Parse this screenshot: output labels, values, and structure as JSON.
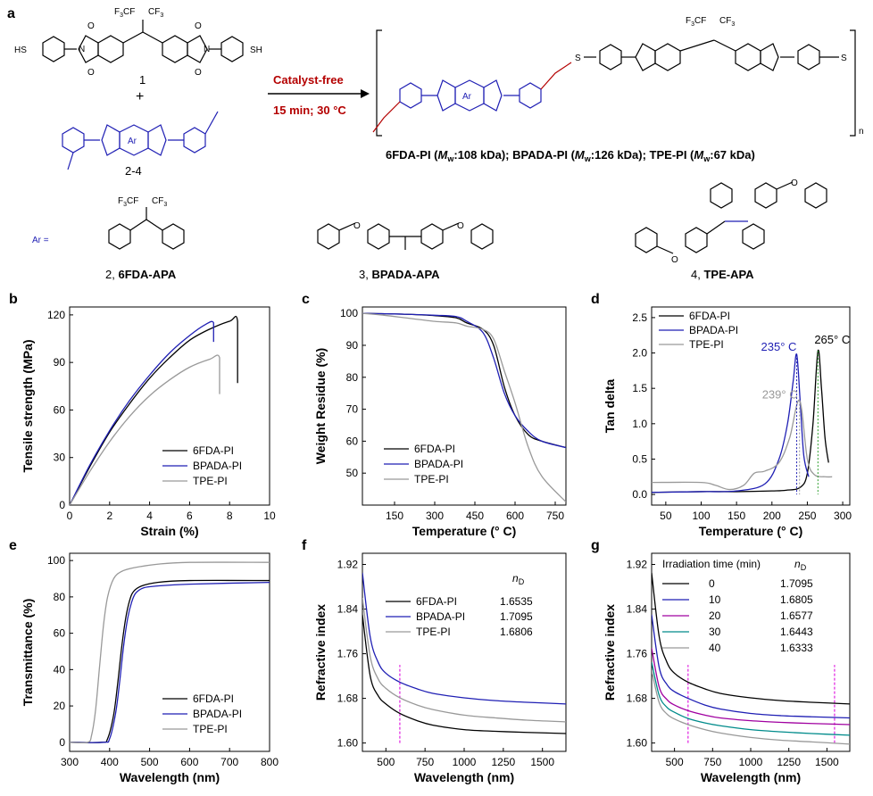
{
  "scheme": {
    "panel_letter": "a",
    "catalyst_label": "Catalyst-free",
    "condition_label": "15 min; 30 °C",
    "monomer1_label": "1",
    "plus_sign": "+",
    "monomer2_label": "2-4",
    "ring_label": "Ar",
    "ar_equals": "Ar =",
    "repeat_n": "n",
    "sh": "SH",
    "hs": "HS",
    "s": "S",
    "cf3_a": "F",
    "cf3_text": "CF",
    "sub3": "3",
    "oxygen": "O",
    "nitrogen": "N",
    "mw_pre1": "6FDA-PI (",
    "mw_m": "M",
    "mw_w": "w",
    "mw_v1": ":108 kDa); BPADA-PI (",
    "mw_v2": ":126 kDa); TPE-PI (",
    "mw_v3": ":67 kDa)",
    "ar1_num": "2, ",
    "ar1_name": "6FDA-APA",
    "ar2_num": "3, ",
    "ar2_name": "BPADA-APA",
    "ar3_num": "4, ",
    "ar3_name": "TPE-APA",
    "colors": {
      "blue": "#1f1fb4",
      "red": "#b40000",
      "black": "#000000"
    }
  },
  "chart_data": [
    {
      "panel": "b",
      "type": "line",
      "xlabel": "Strain (%)",
      "ylabel": "Tensile strength (MPa)",
      "xlim": [
        0,
        10
      ],
      "ylim": [
        0,
        125
      ],
      "xticks": [
        0,
        2,
        4,
        6,
        8,
        10
      ],
      "yticks": [
        0,
        30,
        60,
        90,
        120
      ],
      "legend_position": "bottom-right",
      "series": [
        {
          "name": "6FDA-PI",
          "color": "#000000",
          "x": [
            0,
            1,
            2,
            3,
            4,
            5,
            6,
            7,
            8,
            8.4,
            8.4
          ],
          "y": [
            0,
            24,
            46,
            64,
            80,
            93,
            104,
            111,
            116,
            116,
            77
          ]
        },
        {
          "name": "BPADA-PI",
          "color": "#1f1fb4",
          "x": [
            0,
            1,
            2,
            3,
            4,
            5,
            6,
            6.8,
            7.2,
            7.2
          ],
          "y": [
            0,
            25,
            47,
            66,
            82,
            96,
            107,
            114,
            115,
            103
          ]
        },
        {
          "name": "TPE-PI",
          "color": "#999999",
          "x": [
            0,
            1,
            2,
            3,
            4,
            5,
            6,
            7,
            7.5,
            7.5
          ],
          "y": [
            0,
            21,
            40,
            56,
            69,
            79,
            87,
            92,
            93,
            70
          ]
        }
      ]
    },
    {
      "panel": "c",
      "type": "line",
      "xlabel": "Temperature (° C)",
      "ylabel": "Weight Residue (%)",
      "xlim": [
        30,
        790
      ],
      "ylim": [
        40,
        102
      ],
      "xticks": [
        150,
        300,
        450,
        600,
        750
      ],
      "yticks": [
        50,
        60,
        70,
        80,
        90,
        100
      ],
      "legend_position": "bottom-center",
      "series": [
        {
          "name": "6FDA-PI",
          "color": "#000000",
          "x": [
            30,
            100,
            200,
            300,
            380,
            420,
            480,
            520,
            560,
            600,
            650,
            700,
            790
          ],
          "y": [
            100,
            99.9,
            99.7,
            99.3,
            98.6,
            97,
            95,
            90,
            77,
            68,
            62,
            60,
            58
          ]
        },
        {
          "name": "BPADA-PI",
          "color": "#1f1fb4",
          "x": [
            30,
            100,
            200,
            300,
            380,
            420,
            480,
            520,
            560,
            600,
            650,
            700,
            790
          ],
          "y": [
            100,
            99.9,
            99.7,
            99.4,
            99,
            97.5,
            94,
            86,
            75,
            68,
            63,
            60,
            58
          ]
        },
        {
          "name": "TPE-PI",
          "color": "#999999",
          "x": [
            30,
            100,
            200,
            300,
            380,
            420,
            480,
            520,
            560,
            600,
            650,
            700,
            790
          ],
          "y": [
            100,
            99.5,
            98.5,
            97.5,
            97,
            96,
            95,
            92,
            82,
            72,
            58,
            49,
            41
          ]
        }
      ]
    },
    {
      "panel": "d",
      "type": "line",
      "xlabel": "Temperature (° C)",
      "ylabel": "Tan delta",
      "xlim": [
        30,
        310
      ],
      "ylim": [
        -0.15,
        2.65
      ],
      "xticks": [
        50,
        100,
        150,
        200,
        250,
        300
      ],
      "yticks": [
        0.0,
        0.5,
        1.0,
        1.5,
        2.0,
        2.5
      ],
      "legend_position": "top-left",
      "annotations": [
        {
          "text": "265° C",
          "color": "#000000",
          "x": 265,
          "y": 2.03
        },
        {
          "text": "235° C",
          "color": "#1f1fb4",
          "x": 235,
          "y": 1.98
        },
        {
          "text": "239° C",
          "color": "#999999",
          "x": 239,
          "y": 1.33
        }
      ],
      "series": [
        {
          "name": "6FDA-PI",
          "color": "#000000",
          "x": [
            30,
            100,
            150,
            200,
            220,
            240,
            250,
            258,
            265,
            270,
            275,
            280
          ],
          "y": [
            0.03,
            0.04,
            0.04,
            0.05,
            0.06,
            0.1,
            0.3,
            1.0,
            2.03,
            1.5,
            0.8,
            0.45
          ]
        },
        {
          "name": "BPADA-PI",
          "color": "#1f1fb4",
          "x": [
            30,
            100,
            150,
            190,
            210,
            222,
            230,
            235,
            240,
            245,
            252
          ],
          "y": [
            0.03,
            0.04,
            0.05,
            0.15,
            0.5,
            1.0,
            1.6,
            1.98,
            1.3,
            0.55,
            0.25
          ]
        },
        {
          "name": "TPE-PI",
          "color": "#999999",
          "x": [
            30,
            100,
            120,
            140,
            160,
            175,
            190,
            210,
            225,
            239,
            250,
            260,
            275,
            285
          ],
          "y": [
            0.17,
            0.17,
            0.13,
            0.07,
            0.13,
            0.3,
            0.33,
            0.45,
            0.8,
            1.33,
            0.5,
            0.28,
            0.25,
            0.25
          ]
        }
      ]
    },
    {
      "panel": "e",
      "type": "line",
      "xlabel": "Wavelength (nm)",
      "ylabel": "Transmittance (%)",
      "xlim": [
        300,
        800
      ],
      "ylim": [
        -5,
        104
      ],
      "xticks": [
        300,
        400,
        500,
        600,
        700,
        800
      ],
      "yticks": [
        0,
        20,
        40,
        60,
        80,
        100
      ],
      "legend_position": "bottom-right",
      "series": [
        {
          "name": "6FDA-PI",
          "color": "#000000",
          "x": [
            300,
            380,
            395,
            410,
            420,
            430,
            440,
            450,
            460,
            480,
            520,
            600,
            800
          ],
          "y": [
            0,
            0,
            2,
            15,
            32,
            52,
            68,
            78,
            83,
            86,
            88,
            89,
            89
          ]
        },
        {
          "name": "BPADA-PI",
          "color": "#1f1fb4",
          "x": [
            300,
            385,
            400,
            415,
            425,
            435,
            445,
            455,
            465,
            485,
            520,
            600,
            800
          ],
          "y": [
            0,
            0,
            2,
            16,
            33,
            53,
            68,
            77,
            82,
            85,
            86,
            87,
            88
          ]
        },
        {
          "name": "TPE-PI",
          "color": "#999999",
          "x": [
            300,
            345,
            355,
            365,
            375,
            385,
            395,
            410,
            430,
            460,
            520,
            600,
            800
          ],
          "y": [
            0,
            0,
            4,
            18,
            42,
            65,
            80,
            90,
            94,
            96,
            98,
            99,
            99
          ]
        }
      ]
    },
    {
      "panel": "f",
      "type": "line",
      "xlabel": "Wavelength (nm)",
      "ylabel": "Refractive index",
      "xlim": [
        350,
        1650
      ],
      "ylim": [
        1.585,
        1.94
      ],
      "xticks": [
        500,
        750,
        1000,
        1250,
        1500
      ],
      "yticks": [
        1.6,
        1.68,
        1.76,
        1.84,
        1.92
      ],
      "marker_line_x": 589,
      "legend_position": "top-center",
      "legend_value_header": "n",
      "legend_value_sub": "D",
      "series": [
        {
          "name": "6FDA-PI",
          "value": "1.6535",
          "color": "#000000",
          "x": [
            350,
            400,
            450,
            500,
            589,
            700,
            800,
            1000,
            1200,
            1400,
            1650
          ],
          "y": [
            1.83,
            1.72,
            1.685,
            1.67,
            1.653,
            1.64,
            1.632,
            1.624,
            1.621,
            1.619,
            1.617
          ]
        },
        {
          "name": "BPADA-PI",
          "value": "1.7095",
          "color": "#1f1fb4",
          "x": [
            350,
            400,
            450,
            500,
            589,
            700,
            800,
            1000,
            1200,
            1400,
            1650
          ],
          "y": [
            1.905,
            1.79,
            1.745,
            1.725,
            1.709,
            1.697,
            1.689,
            1.681,
            1.676,
            1.673,
            1.67
          ]
        },
        {
          "name": "TPE-PI",
          "value": "1.6806",
          "color": "#999999",
          "x": [
            350,
            400,
            450,
            500,
            589,
            700,
            800,
            1000,
            1200,
            1400,
            1650
          ],
          "y": [
            1.86,
            1.755,
            1.715,
            1.698,
            1.681,
            1.668,
            1.66,
            1.65,
            1.645,
            1.641,
            1.638
          ]
        }
      ]
    },
    {
      "panel": "g",
      "type": "line",
      "xlabel": "Wavelength (nm)",
      "ylabel": "Refractive index",
      "xlim": [
        350,
        1650
      ],
      "ylim": [
        1.585,
        1.94
      ],
      "xticks": [
        500,
        750,
        1000,
        1250,
        1500
      ],
      "yticks": [
        1.6,
        1.68,
        1.76,
        1.84,
        1.92
      ],
      "marker_line_x": [
        589,
        1550
      ],
      "legend_position": "top-center",
      "legend_title": "Irradiation time (min)",
      "legend_value_header": "n",
      "legend_value_sub": "D",
      "series": [
        {
          "name": "0",
          "value": "1.7095",
          "color": "#000000",
          "x": [
            350,
            400,
            450,
            500,
            589,
            700,
            800,
            1000,
            1200,
            1400,
            1650
          ],
          "y": [
            1.905,
            1.79,
            1.745,
            1.725,
            1.709,
            1.697,
            1.689,
            1.681,
            1.676,
            1.673,
            1.67
          ]
        },
        {
          "name": "10",
          "value": "1.6805",
          "color": "#1f1fb4",
          "x": [
            350,
            400,
            450,
            500,
            589,
            700,
            800,
            1000,
            1200,
            1400,
            1650
          ],
          "y": [
            1.83,
            1.735,
            1.705,
            1.692,
            1.68,
            1.668,
            1.661,
            1.653,
            1.649,
            1.647,
            1.645
          ]
        },
        {
          "name": "20",
          "value": "1.6577",
          "color": "#a000a0",
          "x": [
            350,
            400,
            450,
            500,
            589,
            700,
            800,
            1000,
            1200,
            1400,
            1650
          ],
          "y": [
            1.77,
            1.7,
            1.678,
            1.668,
            1.658,
            1.65,
            1.645,
            1.64,
            1.637,
            1.635,
            1.633
          ]
        },
        {
          "name": "30",
          "value": "1.6443",
          "color": "#008b8b",
          "x": [
            350,
            400,
            450,
            500,
            589,
            700,
            800,
            1000,
            1200,
            1400,
            1650
          ],
          "y": [
            1.745,
            1.685,
            1.664,
            1.655,
            1.644,
            1.636,
            1.631,
            1.624,
            1.62,
            1.617,
            1.614
          ]
        },
        {
          "name": "40",
          "value": "1.6333",
          "color": "#999999",
          "x": [
            350,
            400,
            450,
            500,
            589,
            700,
            800,
            1000,
            1200,
            1400,
            1650
          ],
          "y": [
            1.73,
            1.672,
            1.652,
            1.643,
            1.633,
            1.624,
            1.618,
            1.61,
            1.605,
            1.602,
            1.598
          ]
        }
      ]
    }
  ]
}
